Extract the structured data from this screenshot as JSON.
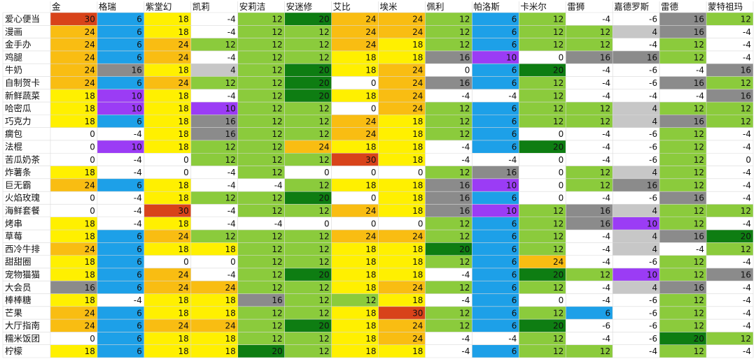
{
  "chart_data": {
    "type": "heatmap",
    "columns": [
      "金",
      "格瑞",
      "紫堂幻",
      "凯莉",
      "安莉洁",
      "安迷修",
      "艾比",
      "埃米",
      "佩利",
      "帕洛斯",
      "卡米尔",
      "雷狮",
      "嘉德罗斯",
      "雷德",
      "蒙特祖玛"
    ],
    "rows": [
      "爱心便当",
      "漫画",
      "金手办",
      "鸡腿",
      "牛奶",
      "自制贺卡",
      "新鲜蔬菜",
      "哈密瓜",
      "巧克力",
      "瘸包",
      "法棍",
      "苦瓜奶茶",
      "炸薯条",
      "巨无霸",
      "火焰玫瑰",
      "海鲜套餐",
      "烤串",
      "草莓",
      "西冷牛排",
      "甜甜圈",
      "宠物猫猫",
      "大会员",
      "棒棒糖",
      "芒果",
      "大厅指南",
      "糯米饭团",
      "柠檬"
    ],
    "values": [
      [
        30,
        6,
        18,
        -4,
        12,
        20,
        24,
        24,
        12,
        6,
        12,
        -4,
        -6,
        16,
        12
      ],
      [
        24,
        6,
        18,
        -4,
        12,
        12,
        24,
        24,
        12,
        6,
        12,
        12,
        4,
        16,
        -4
      ],
      [
        24,
        6,
        24,
        12,
        12,
        12,
        24,
        18,
        12,
        6,
        12,
        12,
        -4,
        12,
        -4
      ],
      [
        24,
        6,
        24,
        -4,
        12,
        12,
        18,
        18,
        16,
        10,
        0,
        16,
        16,
        12,
        -4
      ],
      [
        24,
        16,
        18,
        4,
        12,
        20,
        18,
        24,
        0,
        6,
        20,
        -4,
        -6,
        -4,
        16
      ],
      [
        24,
        6,
        24,
        12,
        12,
        20,
        0,
        24,
        16,
        6,
        12,
        -4,
        -6,
        16,
        12
      ],
      [
        18,
        10,
        18,
        -4,
        12,
        20,
        18,
        24,
        -4,
        -4,
        12,
        -4,
        -4,
        -4,
        16
      ],
      [
        18,
        10,
        18,
        10,
        12,
        12,
        0,
        24,
        12,
        6,
        12,
        12,
        4,
        12,
        12
      ],
      [
        18,
        6,
        18,
        16,
        12,
        12,
        24,
        18,
        12,
        6,
        12,
        12,
        4,
        16,
        12
      ],
      [
        0,
        -4,
        18,
        16,
        12,
        12,
        24,
        18,
        12,
        6,
        0,
        -4,
        -6,
        12,
        -4
      ],
      [
        0,
        10,
        18,
        12,
        12,
        24,
        18,
        18,
        -4,
        6,
        20,
        -4,
        -6,
        12,
        -4
      ],
      [
        0,
        -4,
        0,
        12,
        12,
        12,
        30,
        18,
        -4,
        -4,
        0,
        -4,
        -6,
        12,
        0
      ],
      [
        18,
        -4,
        0,
        -4,
        12,
        0,
        0,
        0,
        12,
        16,
        0,
        12,
        4,
        12,
        -4
      ],
      [
        24,
        6,
        18,
        -4,
        -4,
        12,
        18,
        18,
        16,
        10,
        0,
        12,
        16,
        12,
        -4
      ],
      [
        0,
        -4,
        18,
        12,
        12,
        20,
        0,
        18,
        16,
        6,
        0,
        -4,
        -6,
        16,
        -4
      ],
      [
        0,
        -4,
        30,
        -4,
        12,
        12,
        24,
        18,
        16,
        10,
        12,
        16,
        4,
        12,
        12
      ],
      [
        18,
        -4,
        18,
        -4,
        -4,
        0,
        0,
        0,
        12,
        6,
        12,
        16,
        10,
        12,
        -4
      ],
      [
        18,
        6,
        24,
        12,
        12,
        12,
        24,
        24,
        12,
        6,
        12,
        -4,
        4,
        16,
        20
      ],
      [
        24,
        6,
        18,
        18,
        12,
        12,
        18,
        18,
        20,
        6,
        12,
        -4,
        4,
        -4,
        12
      ],
      [
        18,
        6,
        0,
        0,
        12,
        12,
        18,
        18,
        12,
        6,
        24,
        -4,
        -6,
        12,
        -4
      ],
      [
        18,
        6,
        24,
        -4,
        12,
        20,
        18,
        18,
        -4,
        6,
        20,
        12,
        10,
        12,
        16
      ],
      [
        16,
        6,
        24,
        24,
        12,
        12,
        18,
        24,
        12,
        6,
        12,
        -4,
        4,
        16,
        -4
      ],
      [
        18,
        -4,
        18,
        18,
        16,
        12,
        12,
        18,
        -4,
        6,
        0,
        -4,
        -6,
        12,
        -4
      ],
      [
        24,
        6,
        18,
        18,
        12,
        12,
        18,
        30,
        12,
        6,
        12,
        6,
        -6,
        12,
        -4
      ],
      [
        24,
        6,
        24,
        24,
        12,
        20,
        18,
        24,
        12,
        6,
        20,
        -6,
        -6,
        12,
        -4
      ],
      [
        0,
        6,
        18,
        18,
        12,
        12,
        18,
        24,
        -4,
        -4,
        12,
        -4,
        -6,
        20,
        12
      ],
      [
        18,
        6,
        18,
        18,
        20,
        12,
        18,
        18,
        -4,
        6,
        12,
        12,
        -4,
        12,
        -4
      ]
    ],
    "value_colors": {
      "30": "#d8431a",
      "24": "#f9bd12",
      "20": "#0e7d12",
      "18": "#fff000",
      "16": "#8b8b8b",
      "12": "#8bcb3c",
      "10": "#9b3cf5",
      "6": "#1da0e8",
      "4": "#c7c7c7",
      "0": "#ffffff",
      "-4": "#ffffff",
      "-6": "#ffffff"
    }
  }
}
